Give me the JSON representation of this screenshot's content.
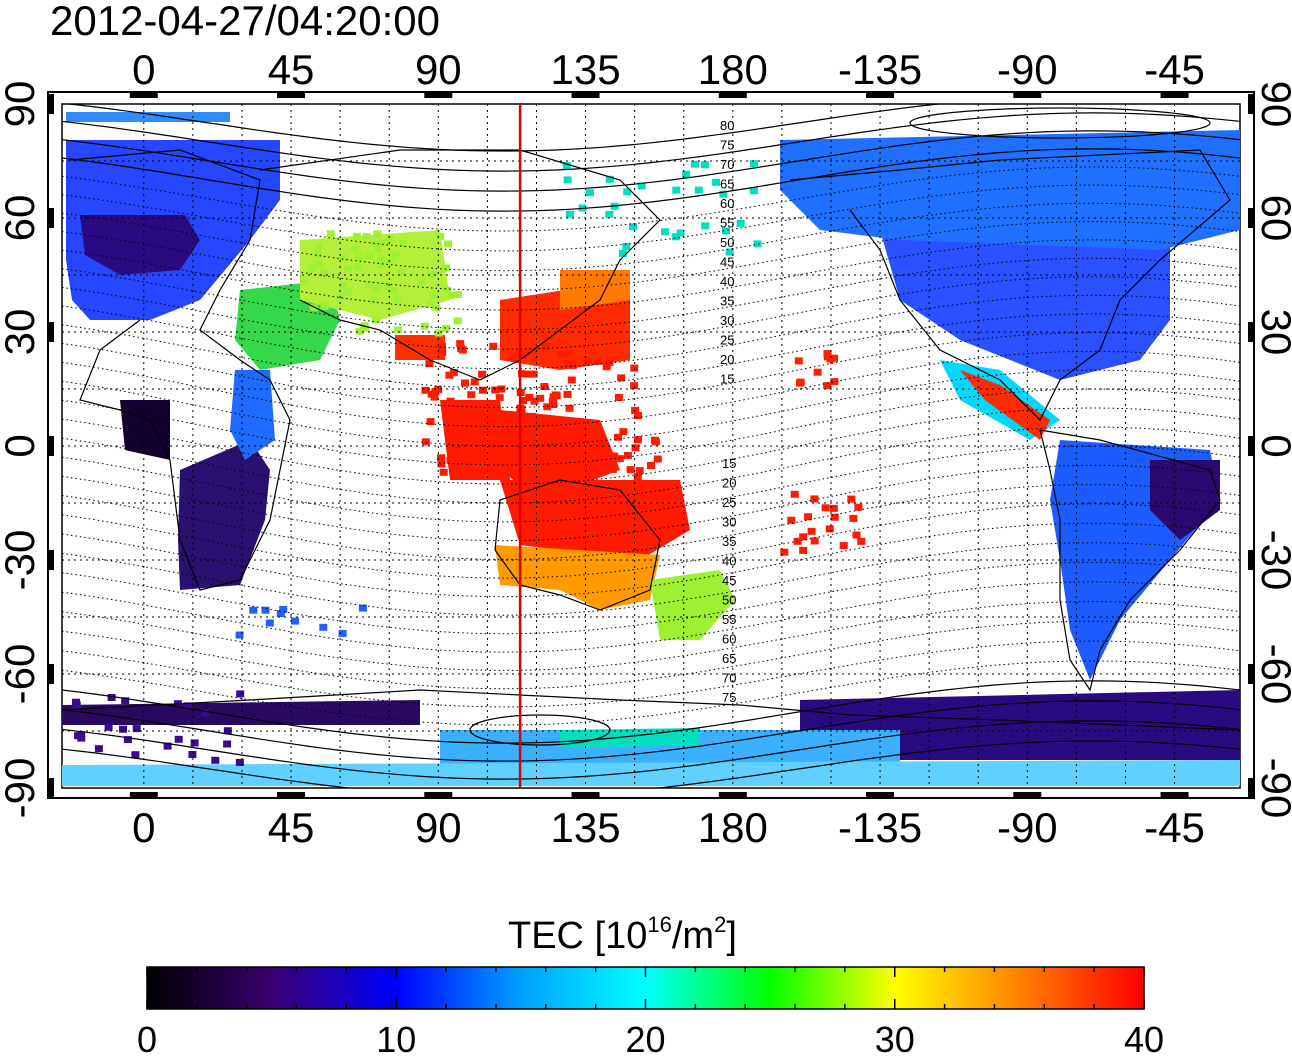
{
  "title": "2012-04-27/04:20:00",
  "top_lon_ticks": [
    "0",
    "45",
    "90",
    "135",
    "180",
    "-135",
    "-90",
    "-45"
  ],
  "bottom_lon_ticks": [
    "0",
    "45",
    "90",
    "135",
    "180",
    "-135",
    "-90",
    "-45"
  ],
  "left_lat_ticks": [
    "90",
    "60",
    "30",
    "0",
    "-30",
    "-60",
    "-90"
  ],
  "right_lat_ticks": [
    "90",
    "60",
    "30",
    "0",
    "-30",
    "-60",
    "-90"
  ],
  "contour_labels_north": [
    "80",
    "75",
    "70",
    "65",
    "60",
    "55",
    "50",
    "45",
    "40",
    "35",
    "30",
    "25",
    "20",
    "15"
  ],
  "contour_labels_south": [
    "15",
    "20",
    "25",
    "30",
    "35",
    "40",
    "45",
    "50",
    "55",
    "60",
    "65",
    "70",
    "75"
  ],
  "colorbar": {
    "label_main": "TEC  [10",
    "label_sup1": "16",
    "label_mid": "/m",
    "label_sup2": "2",
    "label_end": "]",
    "ticks": [
      "0",
      "10",
      "20",
      "30",
      "40"
    ],
    "range": [
      0,
      40
    ],
    "stops": [
      "#000000",
      "#3a0070",
      "#0000ff",
      "#00a0ff",
      "#00ffff",
      "#00ff00",
      "#ffff00",
      "#ff8000",
      "#ff0000"
    ]
  },
  "map": {
    "lon_range": [
      -25,
      335
    ],
    "lat_range": [
      -90,
      90
    ],
    "grid": true,
    "terminator_lon": 115,
    "terminator_color": "#e00000"
  }
}
